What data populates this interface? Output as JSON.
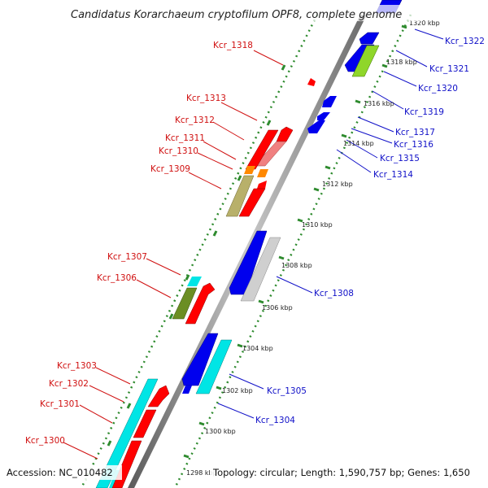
{
  "title": "Candidatus Korarchaeum cryptofilum OPF8, complete genome",
  "footer": {
    "accession": "Accession: NC_010482",
    "topology": "Topology: circular; Length: 1,590,757 bp; Genes: 1,650"
  },
  "scale_labels": [
    "1298 kbp",
    "1300 kbp",
    "1302 kbp",
    "1304 kbp",
    "1306 kbp",
    "1308 kbp",
    "1310 kbp",
    "1312 kbp",
    "1314 kbp",
    "1316 kbp",
    "1318 kbp",
    "1320 kbp"
  ],
  "colors": {
    "forward_label": "#d01010",
    "reverse_label": "#1010c8",
    "backbone": "#8c8c8c",
    "scale_ticks": "#2e8b2e",
    "red": "#ff0000",
    "blue": "#0000ee",
    "cyan": "#00e5e5",
    "pink": "#f08080",
    "orange": "#ff8800",
    "khaki": "#b8b06a",
    "olive": "#6b8e23",
    "grey": "#cfcfcf",
    "lime": "#8fd62a"
  },
  "labels": {
    "forward": [
      "Kcr_1318",
      "Kcr_1313",
      "Kcr_1312",
      "Kcr_1311",
      "Kcr_1310",
      "Kcr_1309",
      "Kcr_1307",
      "Kcr_1306",
      "Kcr_1303",
      "Kcr_1302",
      "Kcr_1301",
      "Kcr_1300"
    ],
    "reverse": [
      "Kcr_1322",
      "Kcr_1321",
      "Kcr_1320",
      "Kcr_1319",
      "Kcr_1317",
      "Kcr_1316",
      "Kcr_1315",
      "Kcr_1314",
      "Kcr_1308",
      "Kcr_1305",
      "Kcr_1304"
    ]
  }
}
